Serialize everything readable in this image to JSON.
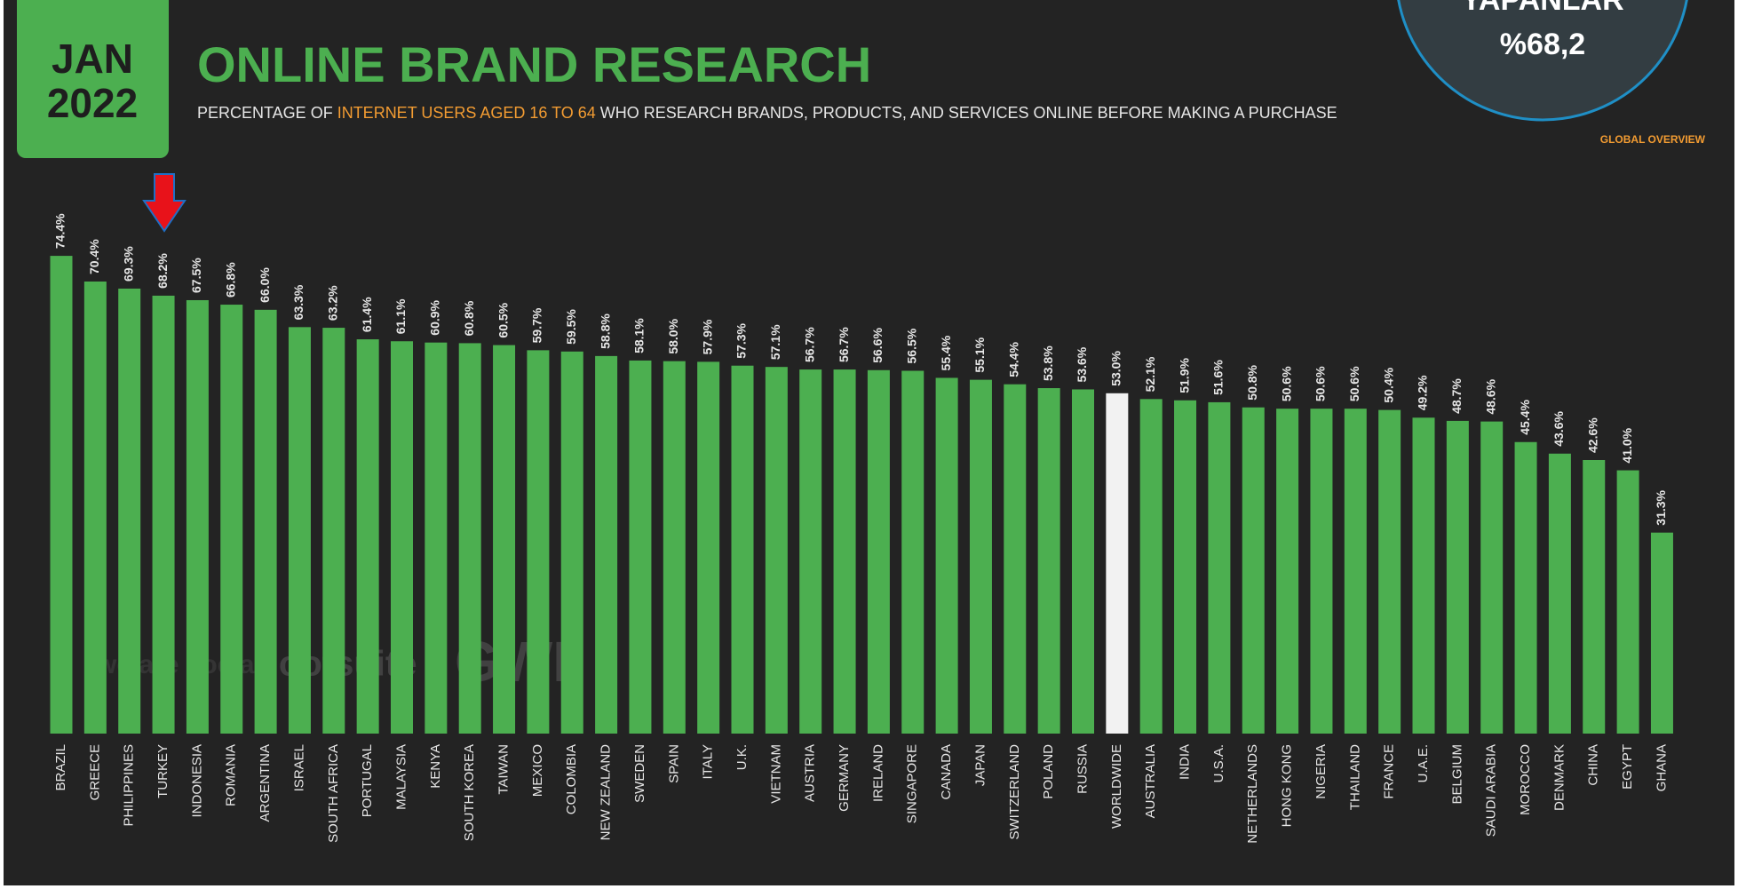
{
  "header": {
    "month": "JAN",
    "year": "2022",
    "badge": "GLOBAL OVERVIEW",
    "callout": {
      "line1": "YAPANLAR",
      "line2": "%68,2"
    },
    "watermarks": [
      "we are social",
      "Hootsuite",
      "GWI."
    ]
  },
  "chart_data": {
    "type": "bar",
    "title": "ONLINE BRAND RESEARCH",
    "subtitle": [
      "PERCENTAGE OF ",
      "INTERNET USERS AGED 16 TO 64",
      " WHO RESEARCH BRANDS, PRODUCTS, AND SERVICES ONLINE BEFORE MAKING A PURCHASE"
    ],
    "categories": [
      "BRAZIL",
      "GREECE",
      "PHILIPPINES",
      "TURKEY",
      "INDONESIA",
      "ROMANIA",
      "ARGENTINA",
      "ISRAEL",
      "SOUTH AFRICA",
      "PORTUGAL",
      "MALAYSIA",
      "KENYA",
      "SOUTH KOREA",
      "TAIWAN",
      "MEXICO",
      "COLOMBIA",
      "NEW ZEALAND",
      "SWEDEN",
      "SPAIN",
      "ITALY",
      "U.K.",
      "VIETNAM",
      "AUSTRIA",
      "GERMANY",
      "IRELAND",
      "SINGAPORE",
      "CANADA",
      "JAPAN",
      "SWITZERLAND",
      "POLAND",
      "RUSSIA",
      "WORLDWIDE",
      "AUSTRALIA",
      "INDIA",
      "U.S.A.",
      "NETHERLANDS",
      "HONG KONG",
      "NIGERIA",
      "THAILAND",
      "FRANCE",
      "U.A.E.",
      "BELGIUM",
      "SAUDI ARABIA",
      "MOROCCO",
      "DENMARK",
      "CHINA",
      "EGYPT",
      "GHANA"
    ],
    "values": [
      74.4,
      70.4,
      69.3,
      68.2,
      67.5,
      66.8,
      66.0,
      63.3,
      63.2,
      61.4,
      61.1,
      60.9,
      60.8,
      60.5,
      59.7,
      59.5,
      58.8,
      58.1,
      58.0,
      57.9,
      57.3,
      57.1,
      56.7,
      56.7,
      56.6,
      56.5,
      55.4,
      55.1,
      54.4,
      53.8,
      53.6,
      53.0,
      52.1,
      51.9,
      51.6,
      50.8,
      50.6,
      50.6,
      50.6,
      50.4,
      49.2,
      48.7,
      48.6,
      45.4,
      43.6,
      42.6,
      41.0,
      31.3
    ],
    "value_labels": [
      "74.4%",
      "70.4%",
      "69.3%",
      "68.2%",
      "67.5%",
      "66.8%",
      "66.0%",
      "63.3%",
      "63.2%",
      "61.4%",
      "61.1%",
      "60.9%",
      "60.8%",
      "60.5%",
      "59.7%",
      "59.5%",
      "58.8%",
      "58.1%",
      "58.0%",
      "57.9%",
      "57.3%",
      "57.1%",
      "56.7%",
      "56.7%",
      "56.6%",
      "56.5%",
      "55.4%",
      "55.1%",
      "54.4%",
      "53.8%",
      "53.6%",
      "53.0%",
      "52.1%",
      "51.9%",
      "51.6%",
      "50.8%",
      "50.6%",
      "50.6%",
      "50.6%",
      "50.4%",
      "49.2%",
      "48.7%",
      "48.6%",
      "45.4%",
      "43.6%",
      "42.6%",
      "41.0%",
      "31.3%"
    ],
    "colors": [
      "#4caf50",
      "#4caf50",
      "#4caf50",
      "#4caf50",
      "#4caf50",
      "#4caf50",
      "#4caf50",
      "#4caf50",
      "#4caf50",
      "#4caf50",
      "#4caf50",
      "#4caf50",
      "#4caf50",
      "#4caf50",
      "#4caf50",
      "#4caf50",
      "#4caf50",
      "#4caf50",
      "#4caf50",
      "#4caf50",
      "#4caf50",
      "#4caf50",
      "#4caf50",
      "#4caf50",
      "#4caf50",
      "#4caf50",
      "#4caf50",
      "#4caf50",
      "#4caf50",
      "#4caf50",
      "#4caf50",
      "#f2f2f2",
      "#4caf50",
      "#4caf50",
      "#4caf50",
      "#4caf50",
      "#4caf50",
      "#4caf50",
      "#4caf50",
      "#4caf50",
      "#4caf50",
      "#4caf50",
      "#4caf50",
      "#4caf50",
      "#4caf50",
      "#4caf50",
      "#4caf50",
      "#4caf50"
    ]
  }
}
